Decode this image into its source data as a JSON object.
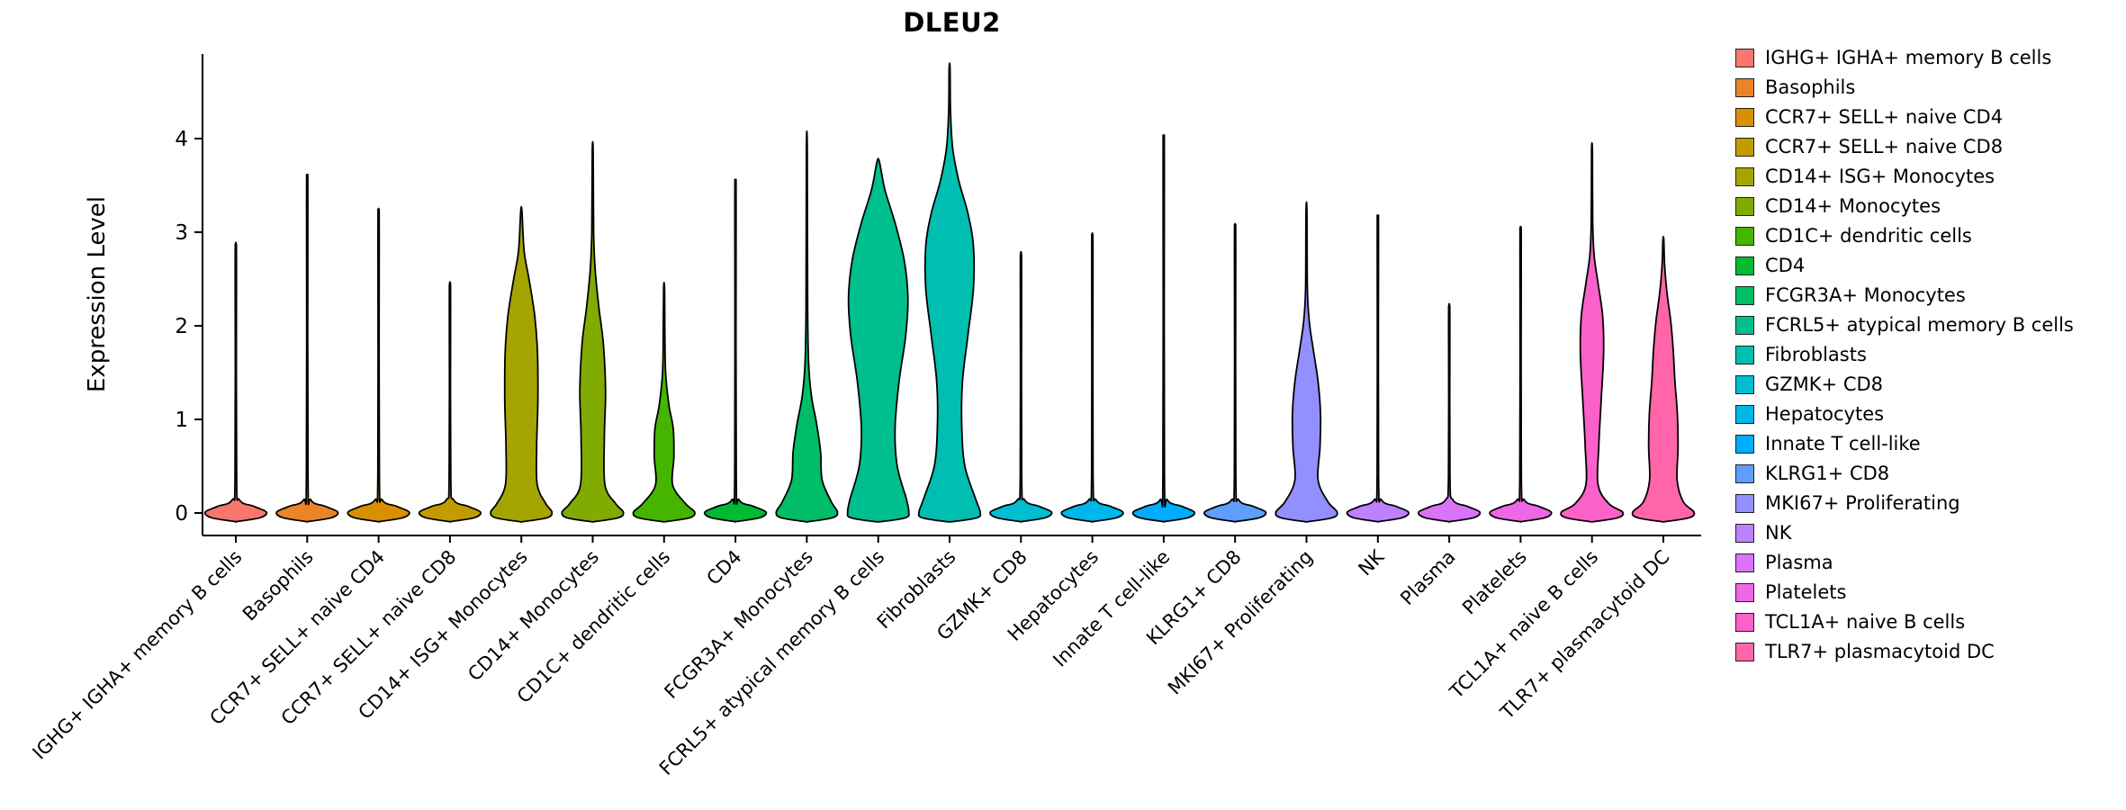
{
  "chart_data": {
    "type": "violin",
    "title": "DLEU2",
    "xlabel": "",
    "ylabel": "Expression Level",
    "ylim": [
      -0.25,
      4.9
    ],
    "yticks": [
      0,
      1,
      2,
      3,
      4
    ],
    "grid": false,
    "legend_position": "right",
    "categories": [
      "IGHG+ IGHA+ memory B cells",
      "Basophils",
      "CCR7+ SELL+ naive CD4",
      "CCR7+ SELL+ naive CD8",
      "CD14+ ISG+ Monocytes",
      "CD14+ Monocytes",
      "CD1C+ dendritic cells",
      "CD4",
      "FCGR3A+ Monocytes",
      "FCRL5+ atypical memory B cells",
      "Fibroblasts",
      "GZMK+ CD8",
      "Hepatocytes",
      "Innate T cell-like",
      "KLRG1+ CD8",
      "MKI67+ Proliferating",
      "NK",
      "Plasma",
      "Platelets",
      "TCL1A+ naive B cells",
      "TLR7+ plasmacytoid DC"
    ],
    "series": [
      {
        "name": "IGHG+ IGHA+ memory B cells",
        "color": "#F8766D",
        "max_expression": 2.86,
        "profile": [
          [
            -0.09,
            0.05
          ],
          [
            -0.05,
            0.8
          ],
          [
            0.01,
            1.0
          ],
          [
            0.07,
            0.6
          ],
          [
            0.14,
            0.12
          ],
          [
            0.4,
            0.025
          ],
          [
            2.6,
            0.02
          ],
          [
            2.86,
            0.015
          ]
        ]
      },
      {
        "name": "Basophils",
        "color": "#EA8429",
        "max_expression": 3.57,
        "profile": [
          [
            -0.09,
            0.05
          ],
          [
            -0.05,
            0.8
          ],
          [
            0.01,
            1.0
          ],
          [
            0.07,
            0.6
          ],
          [
            0.14,
            0.12
          ],
          [
            0.4,
            0.025
          ],
          [
            3.3,
            0.02
          ],
          [
            3.57,
            0.015
          ]
        ]
      },
      {
        "name": "CCR7+ SELL+ naive CD4",
        "color": "#D99000",
        "max_expression": 3.22,
        "profile": [
          [
            -0.09,
            0.05
          ],
          [
            -0.05,
            0.8
          ],
          [
            0.01,
            1.0
          ],
          [
            0.07,
            0.6
          ],
          [
            0.14,
            0.12
          ],
          [
            0.4,
            0.025
          ],
          [
            2.95,
            0.02
          ],
          [
            3.22,
            0.015
          ]
        ]
      },
      {
        "name": "CCR7+ SELL+ naive CD8",
        "color": "#C29B00",
        "max_expression": 2.44,
        "profile": [
          [
            -0.09,
            0.05
          ],
          [
            -0.05,
            0.8
          ],
          [
            0.01,
            1.0
          ],
          [
            0.07,
            0.6
          ],
          [
            0.14,
            0.12
          ],
          [
            0.4,
            0.025
          ],
          [
            2.2,
            0.02
          ],
          [
            2.44,
            0.015
          ]
        ]
      },
      {
        "name": "CD14+ ISG+ Monocytes",
        "color": "#A6A400",
        "max_expression": 3.22,
        "profile": [
          [
            -0.09,
            0.1
          ],
          [
            -0.05,
            0.85
          ],
          [
            0.01,
            1.0
          ],
          [
            0.1,
            0.8
          ],
          [
            0.3,
            0.52
          ],
          [
            0.7,
            0.5
          ],
          [
            1.2,
            0.54
          ],
          [
            1.7,
            0.53
          ],
          [
            2.1,
            0.44
          ],
          [
            2.5,
            0.25
          ],
          [
            2.8,
            0.09
          ],
          [
            3.22,
            0.02
          ]
        ]
      },
      {
        "name": "CD14+ Monocytes",
        "color": "#81AB00",
        "max_expression": 3.86,
        "profile": [
          [
            -0.09,
            0.1
          ],
          [
            -0.05,
            0.85
          ],
          [
            0.01,
            1.0
          ],
          [
            0.1,
            0.75
          ],
          [
            0.3,
            0.4
          ],
          [
            0.8,
            0.38
          ],
          [
            1.3,
            0.42
          ],
          [
            1.8,
            0.35
          ],
          [
            2.2,
            0.2
          ],
          [
            2.6,
            0.08
          ],
          [
            3.0,
            0.03
          ],
          [
            3.86,
            0.015
          ]
        ]
      },
      {
        "name": "CD1C+ dendritic cells",
        "color": "#45B500",
        "max_expression": 2.41,
        "profile": [
          [
            -0.09,
            0.1
          ],
          [
            -0.05,
            0.85
          ],
          [
            0.01,
            1.0
          ],
          [
            0.1,
            0.7
          ],
          [
            0.3,
            0.28
          ],
          [
            0.6,
            0.32
          ],
          [
            0.9,
            0.3
          ],
          [
            1.15,
            0.16
          ],
          [
            1.5,
            0.05
          ],
          [
            2.0,
            0.025
          ],
          [
            2.41,
            0.015
          ]
        ]
      },
      {
        "name": "CD4",
        "color": "#00BA31",
        "max_expression": 3.52,
        "profile": [
          [
            -0.09,
            0.05
          ],
          [
            -0.05,
            0.8
          ],
          [
            0.01,
            1.0
          ],
          [
            0.07,
            0.6
          ],
          [
            0.14,
            0.12
          ],
          [
            0.4,
            0.025
          ],
          [
            3.25,
            0.02
          ],
          [
            3.52,
            0.015
          ]
        ]
      },
      {
        "name": "FCGR3A+ Monocytes",
        "color": "#00BD67",
        "max_expression": 3.87,
        "profile": [
          [
            -0.09,
            0.1
          ],
          [
            -0.05,
            0.85
          ],
          [
            0.01,
            1.0
          ],
          [
            0.12,
            0.8
          ],
          [
            0.35,
            0.5
          ],
          [
            0.65,
            0.45
          ],
          [
            0.95,
            0.32
          ],
          [
            1.25,
            0.15
          ],
          [
            1.6,
            0.06
          ],
          [
            2.2,
            0.025
          ],
          [
            3.87,
            0.015
          ]
        ]
      },
      {
        "name": "FCRL5+ atypical memory B cells",
        "color": "#00BF8F",
        "max_expression": 3.75,
        "profile": [
          [
            -0.09,
            0.15
          ],
          [
            -0.05,
            0.9
          ],
          [
            0.01,
            1.0
          ],
          [
            0.15,
            0.92
          ],
          [
            0.5,
            0.62
          ],
          [
            0.9,
            0.55
          ],
          [
            1.4,
            0.68
          ],
          [
            1.9,
            0.9
          ],
          [
            2.3,
            0.97
          ],
          [
            2.7,
            0.85
          ],
          [
            3.1,
            0.55
          ],
          [
            3.45,
            0.22
          ],
          [
            3.75,
            0.04
          ]
        ]
      },
      {
        "name": "Fibroblasts",
        "color": "#00BFB1",
        "max_expression": 4.75,
        "profile": [
          [
            -0.09,
            0.15
          ],
          [
            -0.05,
            0.9
          ],
          [
            0.01,
            1.0
          ],
          [
            0.15,
            0.85
          ],
          [
            0.5,
            0.5
          ],
          [
            0.9,
            0.4
          ],
          [
            1.4,
            0.42
          ],
          [
            1.9,
            0.6
          ],
          [
            2.4,
            0.78
          ],
          [
            2.85,
            0.78
          ],
          [
            3.2,
            0.6
          ],
          [
            3.55,
            0.3
          ],
          [
            3.9,
            0.1
          ],
          [
            4.3,
            0.03
          ],
          [
            4.75,
            0.015
          ]
        ]
      },
      {
        "name": "GZMK+ CD8",
        "color": "#00BDCF",
        "max_expression": 2.76,
        "profile": [
          [
            -0.09,
            0.05
          ],
          [
            -0.05,
            0.8
          ],
          [
            0.01,
            1.0
          ],
          [
            0.07,
            0.6
          ],
          [
            0.14,
            0.12
          ],
          [
            0.4,
            0.025
          ],
          [
            2.5,
            0.02
          ],
          [
            2.76,
            0.015
          ]
        ]
      },
      {
        "name": "Hepatocytes",
        "color": "#00B7EA",
        "max_expression": 2.96,
        "profile": [
          [
            -0.09,
            0.05
          ],
          [
            -0.05,
            0.8
          ],
          [
            0.01,
            1.0
          ],
          [
            0.07,
            0.6
          ],
          [
            0.14,
            0.12
          ],
          [
            0.4,
            0.025
          ],
          [
            2.7,
            0.02
          ],
          [
            2.96,
            0.015
          ]
        ]
      },
      {
        "name": "Innate T cell-like",
        "color": "#00ACFC",
        "max_expression": 3.96,
        "profile": [
          [
            -0.09,
            0.05
          ],
          [
            -0.05,
            0.8
          ],
          [
            0.01,
            1.0
          ],
          [
            0.07,
            0.6
          ],
          [
            0.14,
            0.12
          ],
          [
            0.4,
            0.025
          ],
          [
            3.7,
            0.02
          ],
          [
            3.96,
            0.015
          ]
        ]
      },
      {
        "name": "KLRG1+ CD8",
        "color": "#5E9EFF",
        "max_expression": 3.06,
        "profile": [
          [
            -0.09,
            0.05
          ],
          [
            -0.05,
            0.8
          ],
          [
            0.01,
            1.0
          ],
          [
            0.07,
            0.6
          ],
          [
            0.14,
            0.12
          ],
          [
            0.4,
            0.025
          ],
          [
            2.8,
            0.02
          ],
          [
            3.06,
            0.015
          ]
        ]
      },
      {
        "name": "MKI67+ Proliferating",
        "color": "#9290FF",
        "max_expression": 3.22,
        "profile": [
          [
            -0.09,
            0.1
          ],
          [
            -0.05,
            0.85
          ],
          [
            0.01,
            1.0
          ],
          [
            0.12,
            0.7
          ],
          [
            0.35,
            0.38
          ],
          [
            0.7,
            0.44
          ],
          [
            1.05,
            0.46
          ],
          [
            1.4,
            0.38
          ],
          [
            1.75,
            0.22
          ],
          [
            2.05,
            0.09
          ],
          [
            2.4,
            0.03
          ],
          [
            3.22,
            0.015
          ]
        ]
      },
      {
        "name": "NK",
        "color": "#BC81FF",
        "max_expression": 3.15,
        "profile": [
          [
            -0.09,
            0.05
          ],
          [
            -0.05,
            0.8
          ],
          [
            0.01,
            1.0
          ],
          [
            0.07,
            0.6
          ],
          [
            0.14,
            0.12
          ],
          [
            0.4,
            0.025
          ],
          [
            2.9,
            0.02
          ],
          [
            3.15,
            0.015
          ]
        ]
      },
      {
        "name": "Plasma",
        "color": "#DA73F8",
        "max_expression": 2.21,
        "profile": [
          [
            -0.09,
            0.05
          ],
          [
            -0.05,
            0.8
          ],
          [
            0.01,
            1.0
          ],
          [
            0.07,
            0.6
          ],
          [
            0.14,
            0.12
          ],
          [
            0.4,
            0.025
          ],
          [
            2.0,
            0.02
          ],
          [
            2.21,
            0.015
          ]
        ]
      },
      {
        "name": "Platelets",
        "color": "#EE67E4",
        "max_expression": 3.03,
        "profile": [
          [
            -0.09,
            0.05
          ],
          [
            -0.05,
            0.8
          ],
          [
            0.01,
            1.0
          ],
          [
            0.07,
            0.6
          ],
          [
            0.14,
            0.12
          ],
          [
            0.4,
            0.025
          ],
          [
            2.78,
            0.02
          ],
          [
            3.03,
            0.015
          ]
        ]
      },
      {
        "name": "TCL1A+ naive B cells",
        "color": "#FB61C8",
        "max_expression": 3.86,
        "profile": [
          [
            -0.09,
            0.1
          ],
          [
            -0.05,
            0.85
          ],
          [
            0.01,
            1.0
          ],
          [
            0.1,
            0.55
          ],
          [
            0.3,
            0.2
          ],
          [
            0.7,
            0.22
          ],
          [
            1.2,
            0.3
          ],
          [
            1.7,
            0.38
          ],
          [
            2.1,
            0.35
          ],
          [
            2.45,
            0.2
          ],
          [
            2.75,
            0.07
          ],
          [
            3.1,
            0.025
          ],
          [
            3.86,
            0.015
          ]
        ]
      },
      {
        "name": "TLR7+ plasmacytoid DC",
        "color": "#FF65A8",
        "max_expression": 2.92,
        "profile": [
          [
            -0.09,
            0.1
          ],
          [
            -0.05,
            0.85
          ],
          [
            0.01,
            1.0
          ],
          [
            0.12,
            0.65
          ],
          [
            0.35,
            0.45
          ],
          [
            0.7,
            0.48
          ],
          [
            1.05,
            0.46
          ],
          [
            1.4,
            0.38
          ],
          [
            1.75,
            0.32
          ],
          [
            2.05,
            0.24
          ],
          [
            2.35,
            0.12
          ],
          [
            2.65,
            0.04
          ],
          [
            2.92,
            0.015
          ]
        ]
      }
    ]
  }
}
